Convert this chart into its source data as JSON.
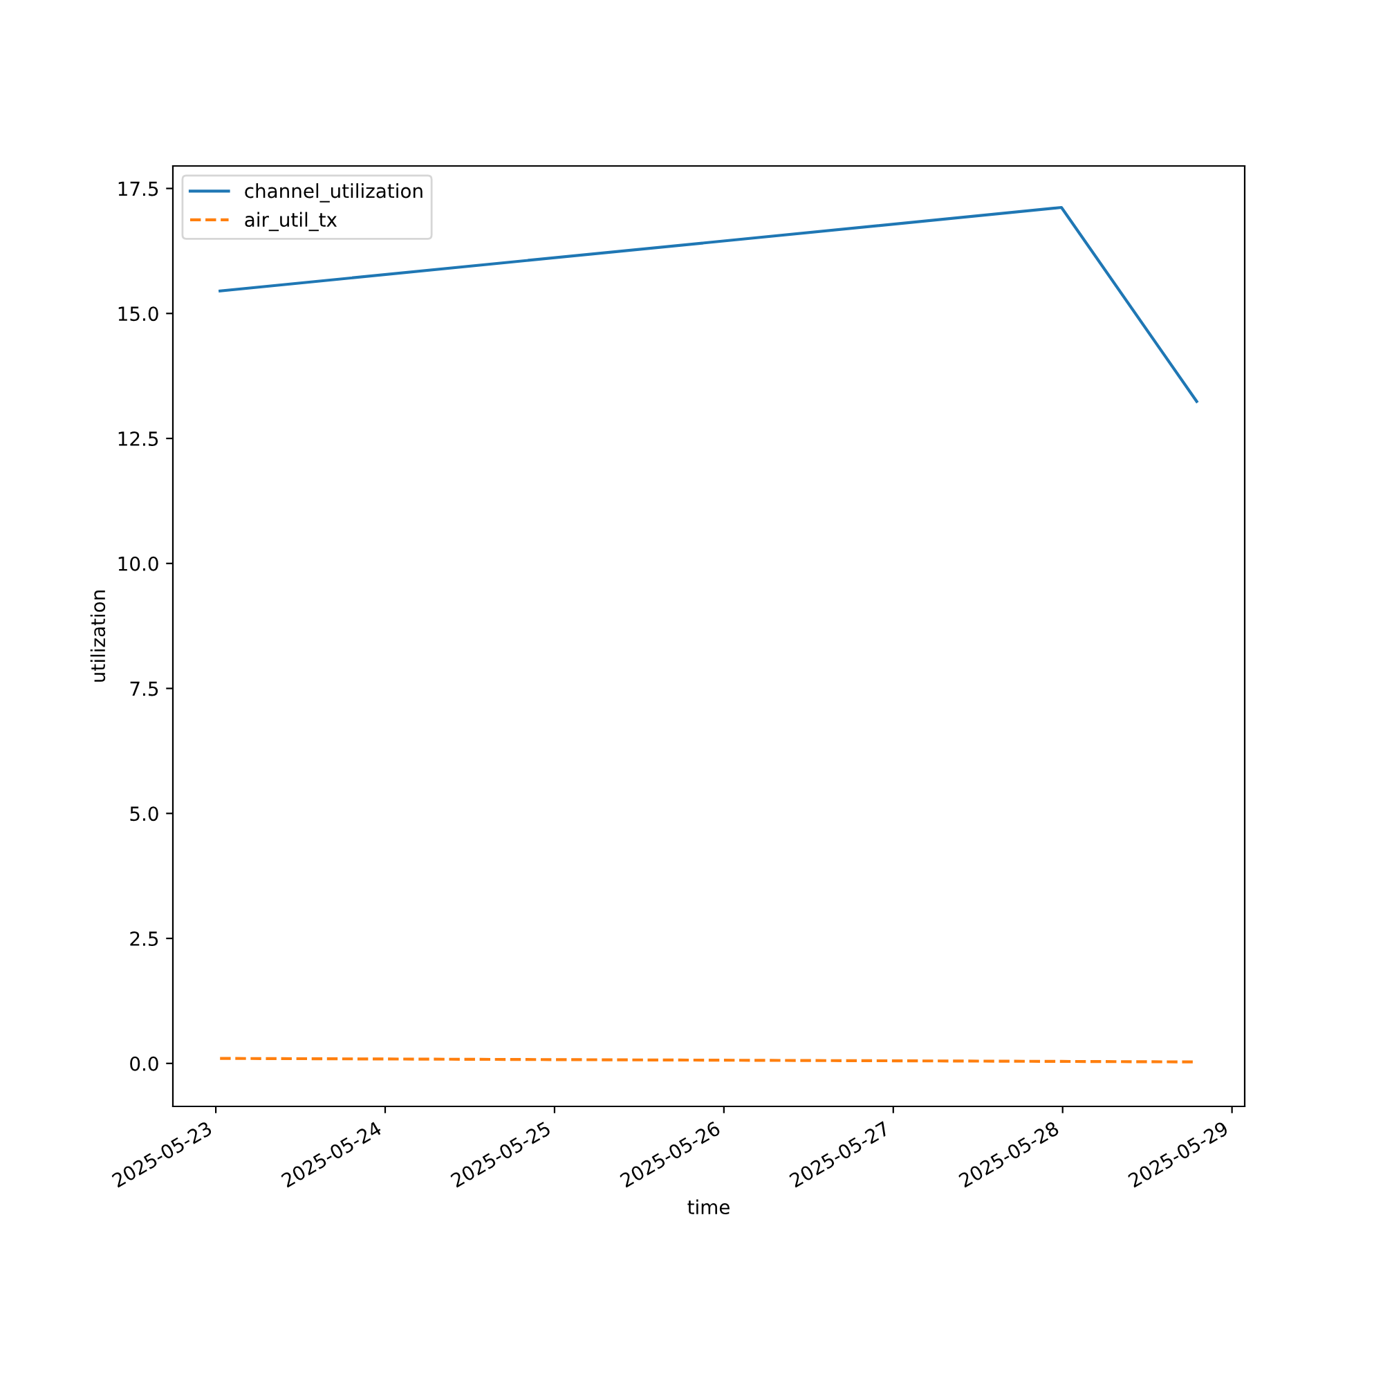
{
  "chart_data": {
    "type": "line",
    "xlabel": "time",
    "ylabel": "utilization",
    "x": [
      "2025-05-23T00:36",
      "2025-05-27T23:50",
      "2025-05-28T19:00"
    ],
    "series": [
      {
        "name": "channel_utilization",
        "color": "#1f77b4",
        "line_style": "solid",
        "values": [
          15.45,
          17.12,
          13.24
        ]
      },
      {
        "name": "air_util_tx",
        "color": "#ff7f0e",
        "line_style": "dashed",
        "values": [
          0.1,
          0.04,
          0.03
        ]
      }
    ],
    "xlim": [
      "2025-05-22T17:55",
      "2025-05-29T01:48"
    ],
    "xticks": [
      "2025-05-23",
      "2025-05-24",
      "2025-05-25",
      "2025-05-26",
      "2025-05-27",
      "2025-05-28",
      "2025-05-29"
    ],
    "ylim": [
      -0.86,
      17.95
    ],
    "yticks": [
      {
        "value": 0,
        "label": "0.0"
      },
      {
        "value": 2.5,
        "label": "2.5"
      },
      {
        "value": 5,
        "label": "5.0"
      },
      {
        "value": 7.5,
        "label": "7.5"
      },
      {
        "value": 10,
        "label": "10.0"
      },
      {
        "value": 12.5,
        "label": "12.5"
      },
      {
        "value": 15,
        "label": "15.0"
      },
      {
        "value": 17.5,
        "label": "17.5"
      }
    ],
    "legend": "top left",
    "grid": false
  }
}
